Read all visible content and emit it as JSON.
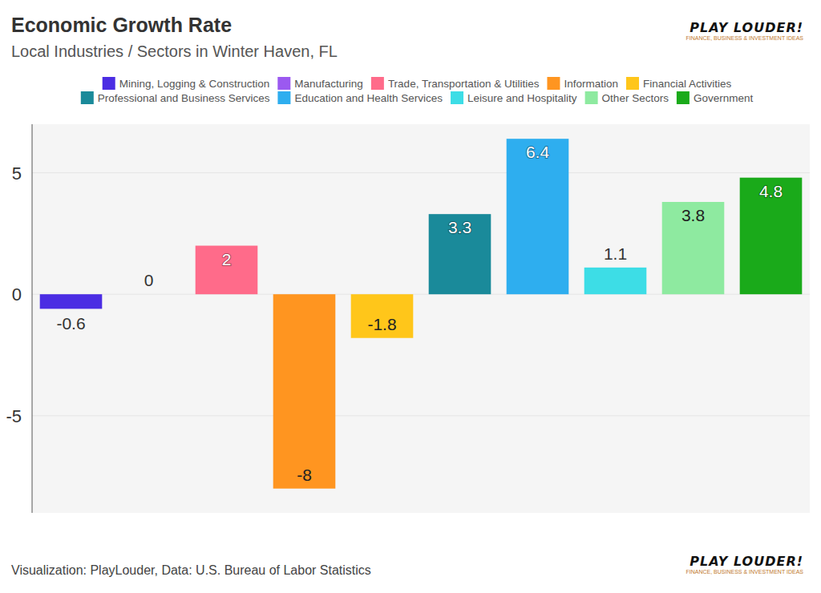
{
  "chart_data": {
    "type": "bar",
    "title": "Economic Growth Rate",
    "subtitle": "Local Industries / Sectors in Winter Haven, FL",
    "source": "Visualization: PlayLouder, Data: U.S. Bureau of Labor Statistics",
    "logo_text": "PLAY LOUDER!",
    "logo_tagline": "FINANCE, BUSINESS & INVESTMENT IDEAS",
    "categories": [
      "Mining, Logging & Construction",
      "Manufacturing",
      "Trade, Transportation & Utilities",
      "Information",
      "Financial Activities",
      "Professional and Business Services",
      "Education and Health Services",
      "Leisure and Hospitality",
      "Other Sectors",
      "Government"
    ],
    "values": [
      -0.6,
      0,
      2,
      -8,
      -1.8,
      3.3,
      6.4,
      1.1,
      3.8,
      4.8
    ],
    "colors": [
      "#4b2de3",
      "#9b59f0",
      "#ff6b8a",
      "#ff9520",
      "#ffc61a",
      "#1a8a9a",
      "#2eaeef",
      "#3ddde6",
      "#8eeaa0",
      "#1aaa1a"
    ],
    "ylim": [
      -9,
      7
    ],
    "yticks": [
      -5,
      0,
      5
    ],
    "grid": true,
    "data_labels": true,
    "tick_labels": "y",
    "legend": "top"
  }
}
